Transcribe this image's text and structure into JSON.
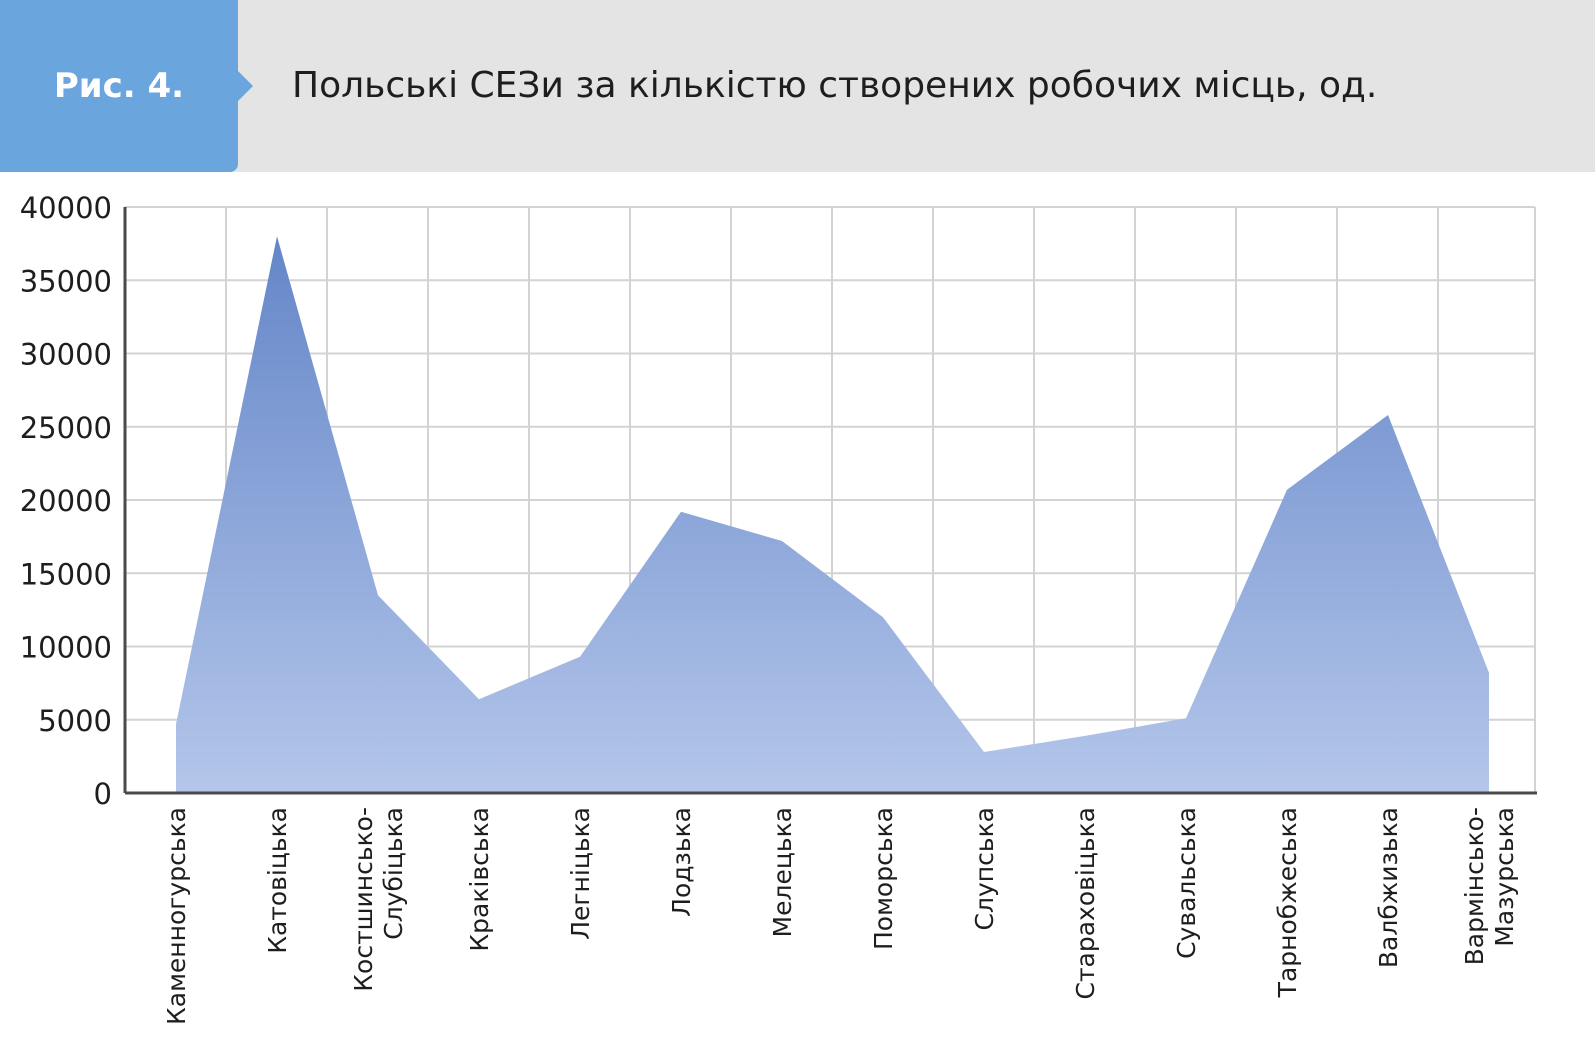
{
  "figure": {
    "label": "Рис. 4.",
    "title": "Польські СЕЗи за кількістю створених робочих місць, од."
  },
  "colors": {
    "accent": "#6aa6dd",
    "header_bg": "#e4e4e4",
    "area_top": "#6486c8",
    "area_bottom": "#b4c6ea",
    "grid": "#d3d3d3",
    "axis": "#4a4a4a"
  },
  "chart_data": {
    "type": "area",
    "title": "Польські СЕЗи за кількістю створених робочих місць, од.",
    "xlabel": "",
    "ylabel": "",
    "ylim": [
      0,
      40000
    ],
    "yticks": [
      0,
      5000,
      10000,
      15000,
      20000,
      25000,
      30000,
      35000,
      40000
    ],
    "grid": true,
    "legend": "none",
    "categories": [
      [
        "Каменногурська"
      ],
      [
        "Катовіцька"
      ],
      [
        "Костшинсько-",
        "Слубіцька"
      ],
      [
        "Краківська"
      ],
      [
        "Легніцька"
      ],
      [
        "Лодзька"
      ],
      [
        "Мелецька"
      ],
      [
        "Поморська"
      ],
      [
        "Слупська"
      ],
      [
        "Стараховіцька"
      ],
      [
        "Сувальська"
      ],
      [
        "Тарнобжеська"
      ],
      [
        "Валбжизька"
      ],
      [
        "Вармінсько-",
        "Мазурська"
      ]
    ],
    "series": [
      {
        "values": [
          4700,
          38000,
          13500,
          6400,
          9300,
          19200,
          17200,
          12000,
          2800,
          3900,
          5100,
          20700,
          25800,
          8200
        ]
      }
    ]
  }
}
